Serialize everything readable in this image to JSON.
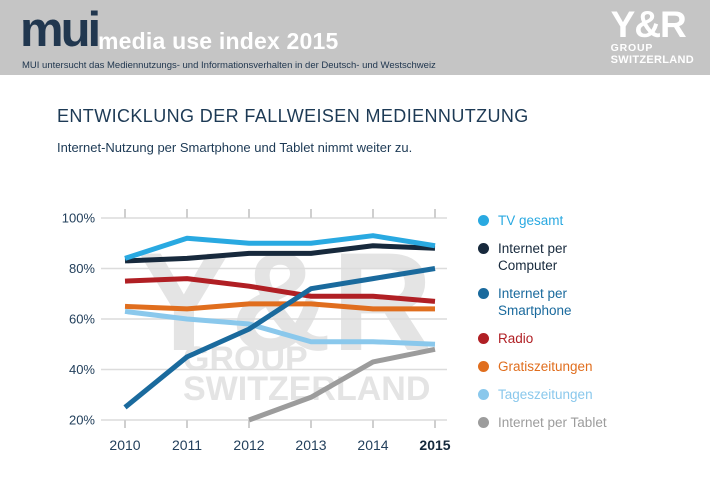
{
  "header": {
    "logo_text": "mui",
    "title": "media use index 2015",
    "subtitle": "MUI untersucht das Mediennutzungs- und Informationsverhalten in der Deutsch- und Westschweiz",
    "brand": {
      "name": "Y&R",
      "line1": "GROUP",
      "line2": "SWITZERLAND"
    },
    "bg_color": "#c5c5c5"
  },
  "main": {
    "title": "ENTWICKLUNG DER FALLWEISEN MEDIENNUTZUNG",
    "subtitle": "Internet-Nutzung per Smartphone und Tablet nimmt weiter zu."
  },
  "watermark": {
    "line1": "Y&R",
    "line2": "GROUP",
    "line3": "SWITZERLAND",
    "color": "#e4e4e4"
  },
  "chart_data": {
    "type": "line",
    "title": "Entwicklung der fallweisen Mediennutzung",
    "categories": [
      "2010",
      "2011",
      "2012",
      "2013",
      "2014",
      "2015"
    ],
    "bold_x_label": "2015",
    "y_ticks": [
      20,
      40,
      60,
      80,
      100
    ],
    "y_tick_labels": [
      "20%",
      "40%",
      "60%",
      "80%",
      "100%"
    ],
    "ylim": [
      20,
      100
    ],
    "unit": "%",
    "grid": true,
    "legend_position": "right",
    "axis_label_color": "#23405c",
    "grid_color": "#dcdcdc",
    "tick_color": "#cfcfcf",
    "series": [
      {
        "name": "TV gesamt",
        "label_lines": [
          "TV gesamt"
        ],
        "color": "#29a9e1",
        "values": [
          84,
          92,
          90,
          90,
          93,
          89
        ]
      },
      {
        "name": "Internet per Computer",
        "label_lines": [
          "Internet per",
          "Computer"
        ],
        "color": "#17293c",
        "values": [
          83,
          84,
          86,
          86,
          89,
          88
        ]
      },
      {
        "name": "Internet per Smartphone",
        "label_lines": [
          "Internet per",
          "Smartphone"
        ],
        "color": "#1a6a9d",
        "values": [
          25,
          45,
          56,
          72,
          76,
          80
        ]
      },
      {
        "name": "Radio",
        "label_lines": [
          "Radio"
        ],
        "color": "#b01f24",
        "values": [
          75,
          76,
          73,
          69,
          69,
          67
        ]
      },
      {
        "name": "Gratiszeitungen",
        "label_lines": [
          "Gratiszeitungen"
        ],
        "color": "#e06e1e",
        "values": [
          65,
          64,
          66,
          66,
          64,
          64
        ]
      },
      {
        "name": "Tageszeitungen",
        "label_lines": [
          "Tageszeitungen"
        ],
        "color": "#8ac8ec",
        "values": [
          63,
          60,
          58,
          51,
          51,
          50
        ]
      },
      {
        "name": "Internet per Tablet",
        "label_lines": [
          "Internet per Tablet"
        ],
        "color": "#9c9c9c",
        "values": [
          null,
          null,
          20,
          29,
          43,
          48
        ]
      }
    ]
  }
}
